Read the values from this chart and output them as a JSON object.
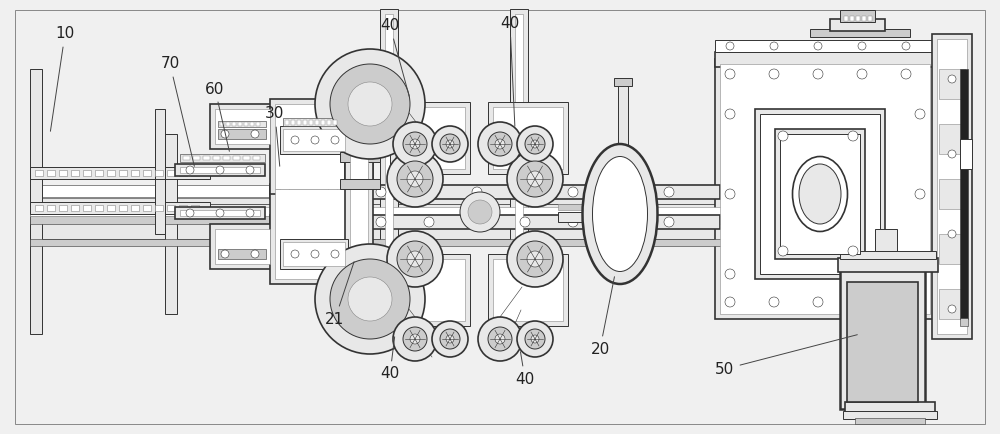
{
  "bg_color": "#f0f0f0",
  "line_color": "#888888",
  "dark_line": "#333333",
  "fill_light": "#e8e8e8",
  "fill_mid": "#cccccc",
  "fill_white": "#ffffff",
  "fig_width": 10.0,
  "fig_height": 4.34,
  "dpi": 100,
  "xlim": [
    0,
    1000
  ],
  "ylim": [
    0,
    434
  ]
}
